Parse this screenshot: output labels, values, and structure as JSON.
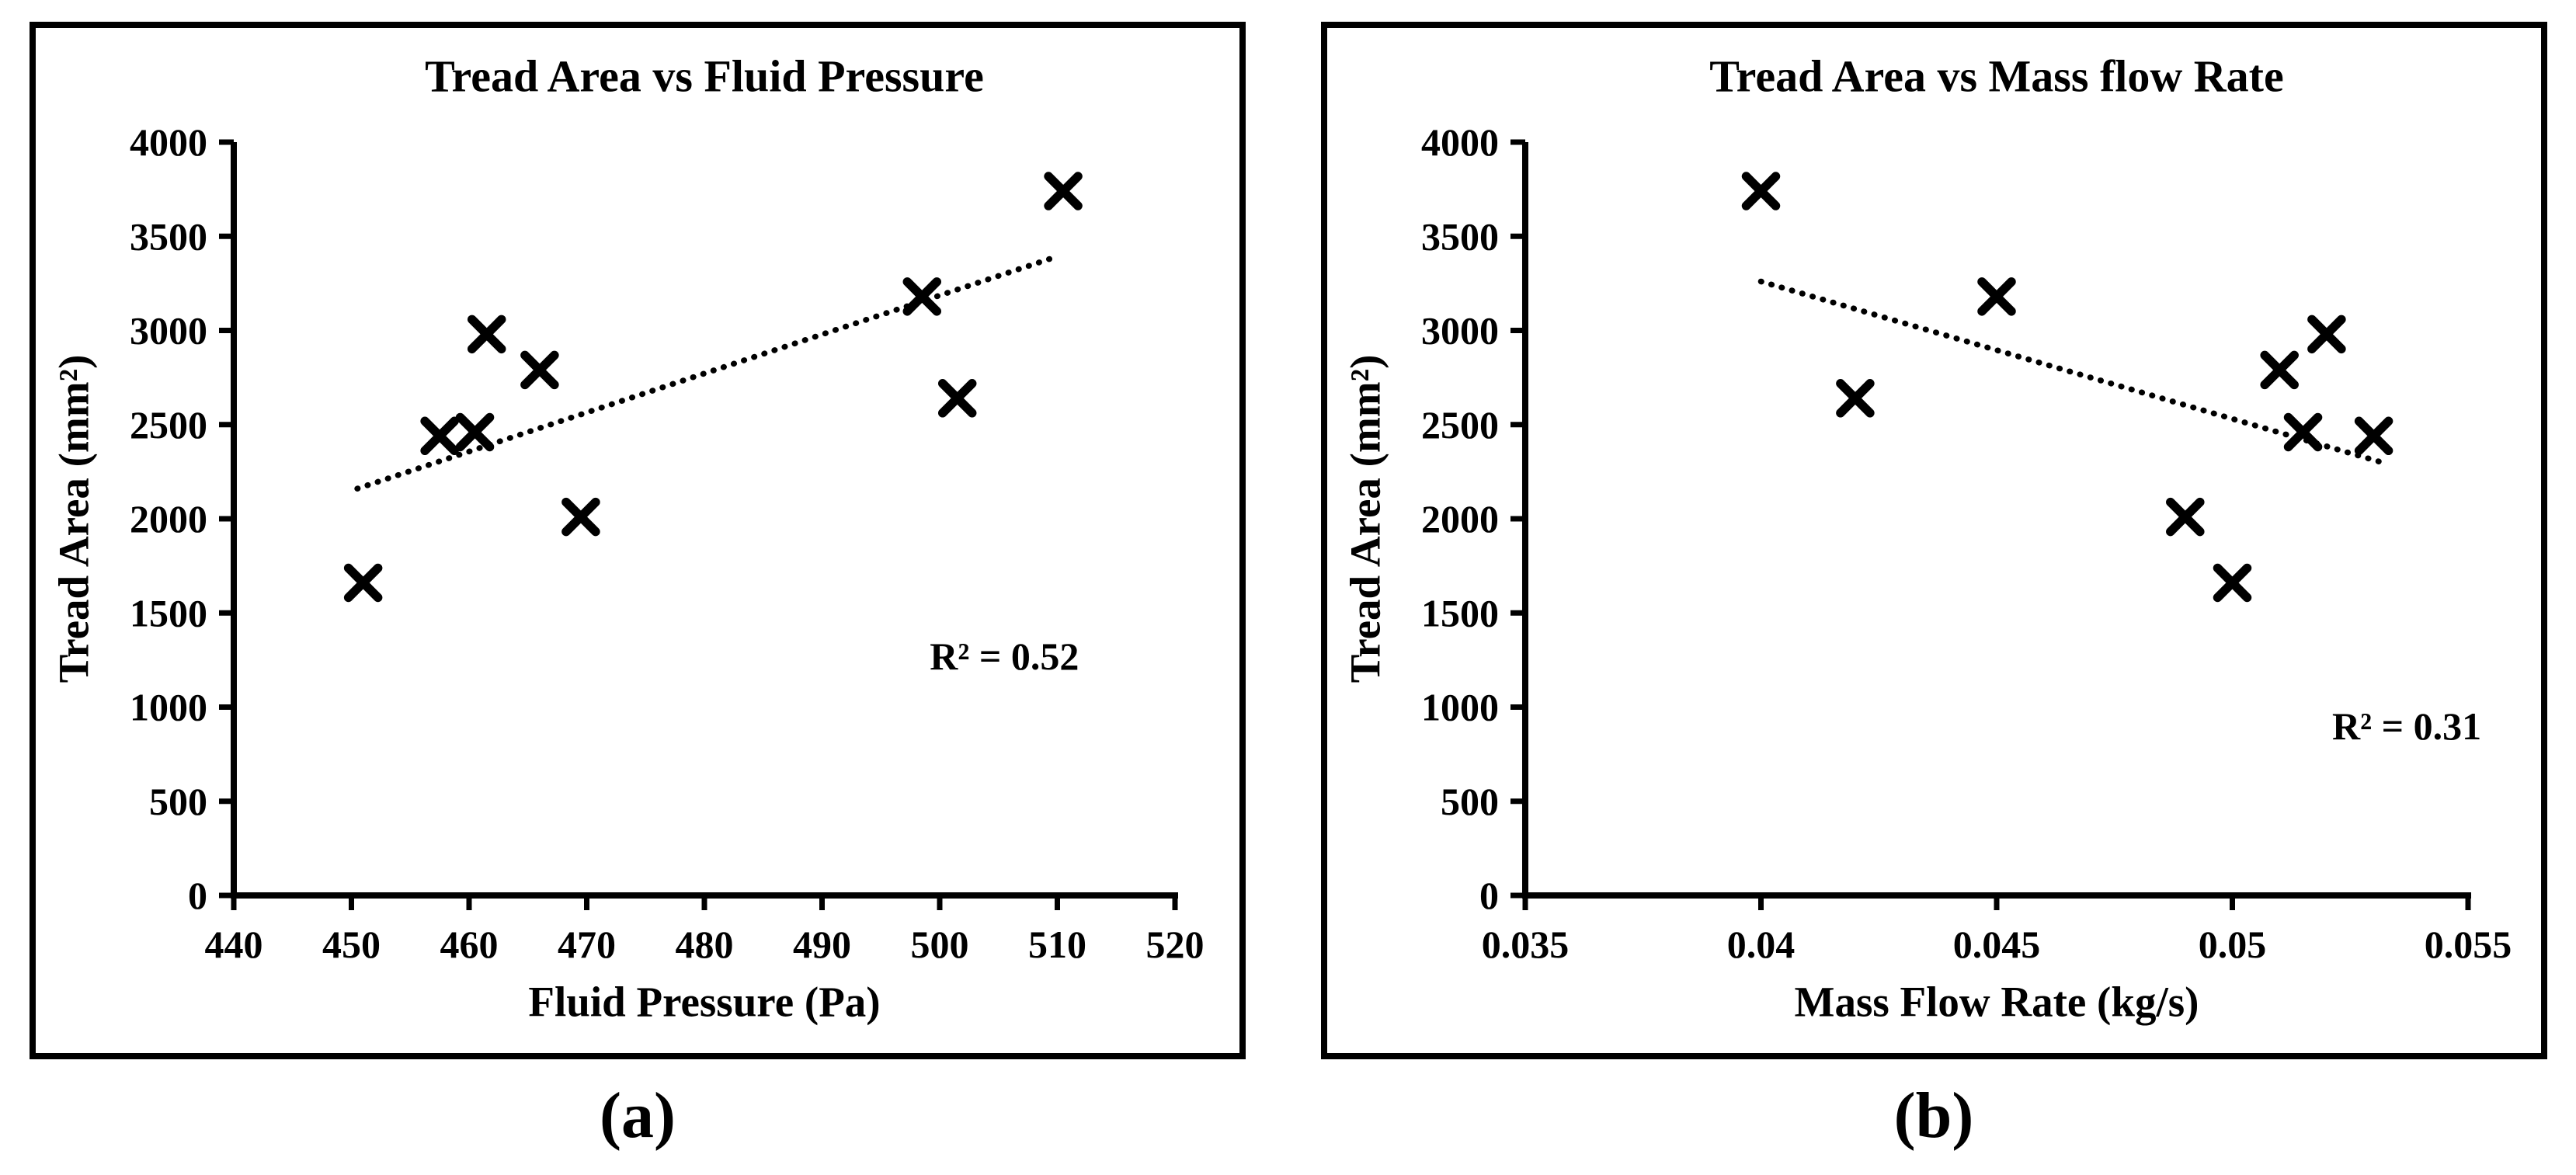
{
  "figure": {
    "background": "#ffffff",
    "ink_color": "#000000",
    "captions": [
      {
        "label": "(a)"
      },
      {
        "label": "(b)"
      }
    ]
  },
  "chart_data": [
    {
      "type": "scatter",
      "panel": "a",
      "title": "Tread Area vs Fluid Pressure",
      "xlabel": "Fluid Pressure (Pa)",
      "ylabel": "Tread Area (mm²)",
      "xlim": [
        440,
        520
      ],
      "ylim": [
        0,
        4000
      ],
      "xticks": [
        440,
        450,
        460,
        470,
        480,
        490,
        500,
        510,
        520
      ],
      "xtick_labels": [
        "440",
        "450",
        "460",
        "470",
        "480",
        "490",
        "500",
        "510",
        "520"
      ],
      "yticks": [
        0,
        500,
        1000,
        1500,
        2000,
        2500,
        3000,
        3500,
        4000
      ],
      "ytick_labels": [
        "0",
        "500",
        "1000",
        "1500",
        "2000",
        "2500",
        "3000",
        "3500",
        "4000"
      ],
      "grid": false,
      "legend": null,
      "marker": "x",
      "points": [
        {
          "x": 451,
          "y": 1660
        },
        {
          "x": 457.5,
          "y": 2440
        },
        {
          "x": 460.5,
          "y": 2460
        },
        {
          "x": 461.5,
          "y": 2980
        },
        {
          "x": 466,
          "y": 2790
        },
        {
          "x": 469.5,
          "y": 2010
        },
        {
          "x": 498.5,
          "y": 3180
        },
        {
          "x": 501.5,
          "y": 2640
        },
        {
          "x": 510.5,
          "y": 3740
        }
      ],
      "trendline": {
        "style": "dotted",
        "x1": 450.5,
        "y1": 2160,
        "x2": 509.6,
        "y2": 3385
      },
      "annotation": {
        "text": "R² = 0.52",
        "x": 505.5,
        "y": 1270
      }
    },
    {
      "type": "scatter",
      "panel": "b",
      "title": "Tread Area vs Mass flow Rate",
      "xlabel": "Mass Flow Rate (kg/s)",
      "ylabel": "Tread Area (mm²)",
      "xlim": [
        0.035,
        0.055
      ],
      "ylim": [
        0,
        4000
      ],
      "xticks": [
        0.035,
        0.04,
        0.045,
        0.05,
        0.055
      ],
      "xtick_labels": [
        "0.035",
        "0.04",
        "0.045",
        "0.05",
        "0.055"
      ],
      "yticks": [
        0,
        500,
        1000,
        1500,
        2000,
        2500,
        3000,
        3500,
        4000
      ],
      "ytick_labels": [
        "0",
        "500",
        "1000",
        "1500",
        "2000",
        "2500",
        "3000",
        "3500",
        "4000"
      ],
      "grid": false,
      "legend": null,
      "marker": "x",
      "points": [
        {
          "x": 0.04,
          "y": 3740
        },
        {
          "x": 0.042,
          "y": 2640
        },
        {
          "x": 0.045,
          "y": 3180
        },
        {
          "x": 0.049,
          "y": 2010
        },
        {
          "x": 0.05,
          "y": 1660
        },
        {
          "x": 0.051,
          "y": 2790
        },
        {
          "x": 0.0515,
          "y": 2460
        },
        {
          "x": 0.052,
          "y": 2980
        },
        {
          "x": 0.053,
          "y": 2440
        }
      ],
      "trendline": {
        "style": "dotted",
        "x1": 0.04,
        "y1": 3260,
        "x2": 0.0533,
        "y2": 2290
      },
      "annotation": {
        "text": "R² = 0.31",
        "x": 0.0537,
        "y": 900
      }
    }
  ]
}
